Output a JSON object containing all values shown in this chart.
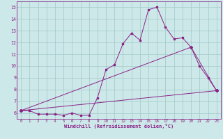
{
  "xlabel": "Windchill (Refroidissement éolien,°C)",
  "xlim": [
    -0.5,
    23.5
  ],
  "ylim": [
    5.5,
    15.5
  ],
  "yticks": [
    6,
    7,
    8,
    9,
    10,
    11,
    12,
    13,
    14,
    15
  ],
  "xticks": [
    0,
    1,
    2,
    3,
    4,
    5,
    6,
    7,
    8,
    9,
    10,
    11,
    12,
    13,
    14,
    15,
    16,
    17,
    18,
    19,
    20,
    21,
    22,
    23
  ],
  "background_color": "#cde8e8",
  "grid_color": "#a0c8c8",
  "line_color": "#882288",
  "line1_x": [
    0,
    1,
    2,
    3,
    4,
    5,
    6,
    7,
    8,
    9,
    10,
    11,
    12,
    13,
    14,
    15,
    16,
    17,
    18,
    19,
    20,
    21,
    22,
    23
  ],
  "line1_y": [
    6.2,
    6.2,
    5.9,
    5.9,
    5.9,
    5.8,
    6.0,
    5.8,
    5.8,
    7.3,
    9.7,
    10.1,
    11.9,
    12.8,
    12.2,
    14.8,
    15.0,
    13.3,
    12.3,
    12.4,
    11.6,
    10.0,
    9.0,
    7.9
  ],
  "line2_x": [
    0,
    23
  ],
  "line2_y": [
    6.2,
    7.9
  ],
  "line3_x": [
    0,
    20,
    23
  ],
  "line3_y": [
    6.2,
    11.6,
    7.9
  ]
}
